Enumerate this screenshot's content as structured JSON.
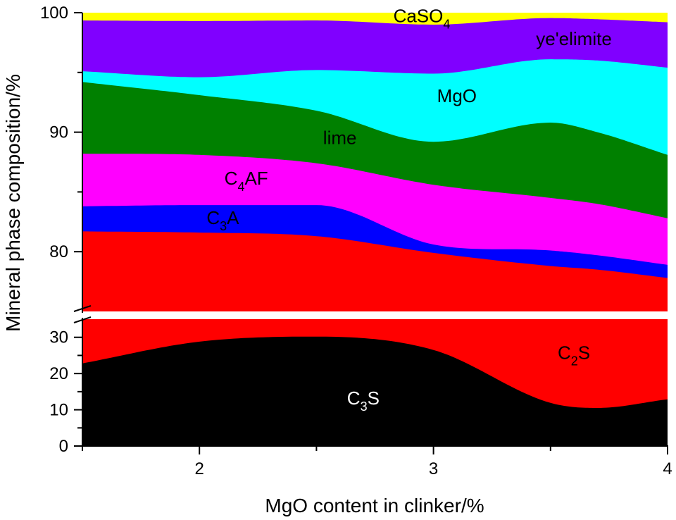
{
  "chart_data": {
    "type": "area",
    "stacked": true,
    "broken_y_axis": true,
    "title": "",
    "xlabel": "MgO content in clinker/%",
    "ylabel": "Mineral phase composition/%",
    "x": [
      1.5,
      2.0,
      2.5,
      3.0,
      3.5,
      3.7,
      4.0
    ],
    "xlim": [
      1.5,
      4.0
    ],
    "x_ticks": [
      2,
      3,
      4
    ],
    "x_minor_ticks": [
      1.5,
      2.5,
      3.5
    ],
    "y_segments": [
      {
        "name": "lower",
        "ylim": [
          0,
          35
        ],
        "ticks": [
          0,
          10,
          20,
          30
        ],
        "minor_ticks": [
          5,
          15,
          25
        ]
      },
      {
        "name": "upper",
        "ylim": [
          75,
          100
        ],
        "ticks": [
          80,
          90,
          100
        ],
        "minor_ticks": [
          85,
          95
        ]
      }
    ],
    "grid": false,
    "legend": "none (inline labels)",
    "series_cumulative_top": [
      {
        "name": "C3S",
        "label": "C",
        "sub": "3",
        "label_tail": "S",
        "color": "#000000",
        "label_color": "#ffffff",
        "values": [
          22.8,
          28.8,
          30.2,
          26.5,
          11.9,
          10.5,
          12.9
        ]
      },
      {
        "name": "C2S",
        "label": "C",
        "sub": "2",
        "label_tail": "S",
        "color": "#ff0000",
        "label_color": "#000000",
        "values": [
          81.7,
          81.6,
          81.3,
          79.9,
          78.8,
          78.5,
          77.8
        ]
      },
      {
        "name": "C3A",
        "label": "C",
        "sub": "3",
        "label_tail": "A",
        "color": "#0000ff",
        "label_color": "#000000",
        "values": [
          83.8,
          83.9,
          83.9,
          80.6,
          80.1,
          79.7,
          78.9
        ]
      },
      {
        "name": "C4AF",
        "label": "C",
        "sub": "4",
        "label_tail": "AF",
        "color": "#ff00ff",
        "label_color": "#000000",
        "values": [
          88.2,
          88.1,
          87.4,
          85.6,
          84.5,
          84.0,
          82.8
        ]
      },
      {
        "name": "lime",
        "label": "lime",
        "sub": "",
        "label_tail": "",
        "color": "#008000",
        "label_color": "#000000",
        "values": [
          94.2,
          93.1,
          91.8,
          89.2,
          90.8,
          90.0,
          88.1
        ]
      },
      {
        "name": "MgO",
        "label": "MgO",
        "sub": "",
        "label_tail": "",
        "color": "#00ffff",
        "label_color": "#000000",
        "values": [
          95.1,
          94.6,
          95.2,
          94.9,
          96.1,
          96.0,
          95.4
        ]
      },
      {
        "name": "ye'elimite",
        "label": "ye'elimite",
        "sub": "",
        "label_tail": "",
        "color": "#8000ff",
        "label_color": "#000000",
        "values": [
          99.35,
          99.3,
          99.35,
          99.0,
          99.55,
          99.45,
          99.2
        ]
      },
      {
        "name": "CaSO4",
        "label": "CaSO",
        "sub": "4",
        "label_tail": "",
        "color": "#ffff00",
        "label_color": "#000000",
        "values": [
          100,
          100,
          100,
          100,
          100,
          100,
          100
        ]
      }
    ],
    "series_percent": [
      {
        "name": "C3S",
        "values": [
          22.8,
          28.8,
          30.2,
          26.5,
          11.9,
          10.5,
          12.9
        ]
      },
      {
        "name": "C2S",
        "values": [
          58.9,
          52.8,
          51.1,
          53.4,
          66.9,
          68.0,
          64.9
        ]
      },
      {
        "name": "C3A",
        "values": [
          2.1,
          2.3,
          2.6,
          0.7,
          1.3,
          1.2,
          1.1
        ]
      },
      {
        "name": "C4AF",
        "values": [
          4.4,
          4.2,
          3.5,
          5.0,
          4.4,
          4.3,
          3.9
        ]
      },
      {
        "name": "lime",
        "values": [
          6.0,
          5.0,
          4.4,
          3.6,
          6.3,
          6.0,
          5.3
        ]
      },
      {
        "name": "MgO",
        "values": [
          0.9,
          1.5,
          3.4,
          5.7,
          5.3,
          6.0,
          7.3
        ]
      },
      {
        "name": "ye'elimite",
        "values": [
          4.25,
          4.7,
          4.15,
          4.1,
          3.45,
          3.45,
          3.8
        ]
      },
      {
        "name": "CaSO4",
        "values": [
          0.65,
          0.7,
          0.65,
          1.0,
          0.45,
          0.55,
          0.8
        ]
      }
    ],
    "annotations": [
      {
        "series": "CaSO4",
        "x": 2.95,
        "y": 99.2
      },
      {
        "series": "ye'elimite",
        "x": 3.6,
        "y": 97.3
      },
      {
        "series": "MgO",
        "x": 3.1,
        "y": 92.5
      },
      {
        "series": "lime",
        "x": 2.6,
        "y": 89.0
      },
      {
        "series": "C4AF",
        "x": 2.2,
        "y": 85.6
      },
      {
        "series": "C3A",
        "x": 2.1,
        "y": 82.3
      },
      {
        "series": "C3S",
        "x": 2.7,
        "y": 11.5
      },
      {
        "series": "C2S",
        "x": 3.6,
        "y": 24.0
      }
    ]
  }
}
